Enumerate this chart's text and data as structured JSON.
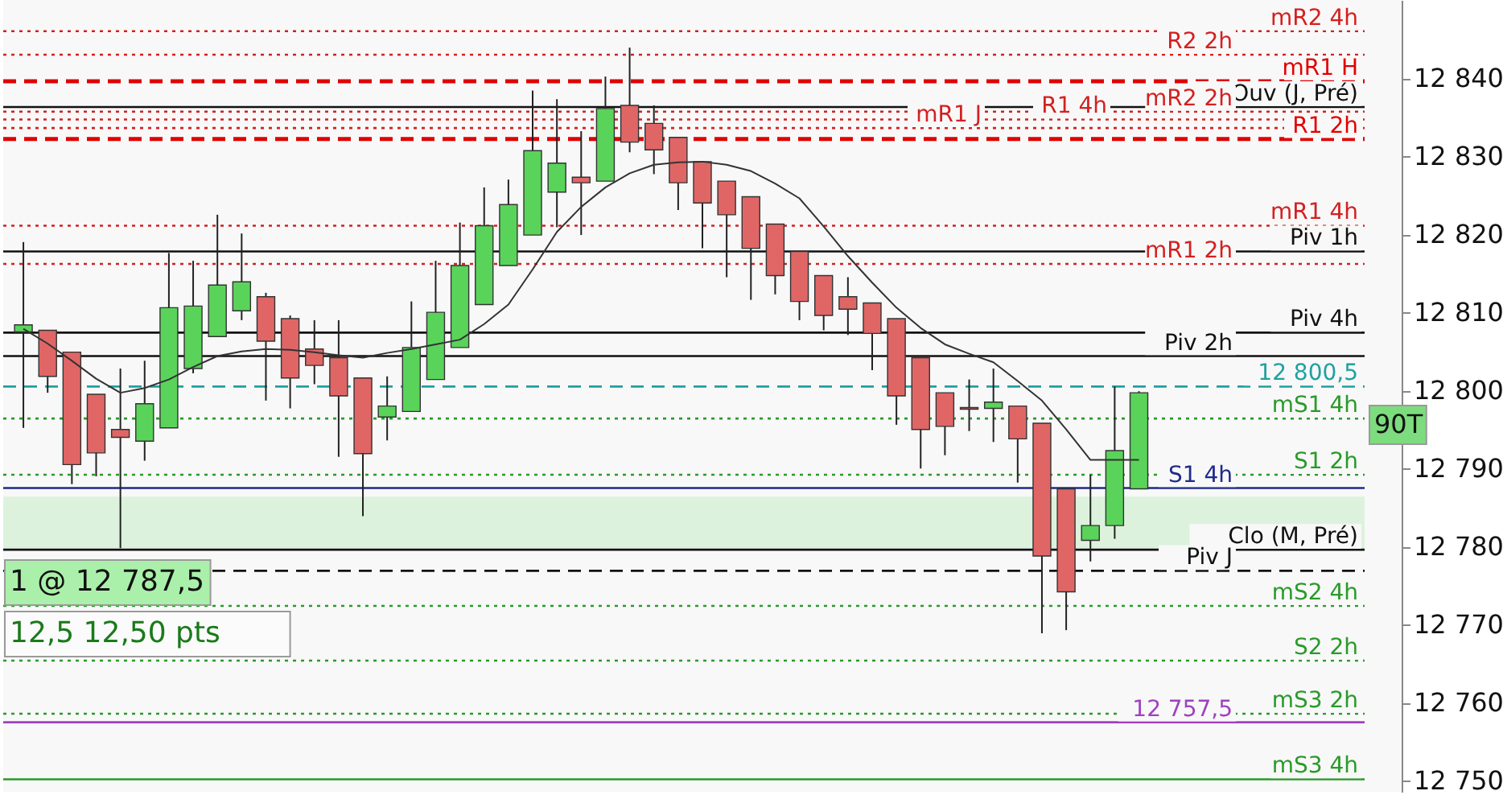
{
  "chart_data": {
    "type": "candlestick",
    "categories": [
      null,
      null,
      null,
      null,
      null,
      null,
      null,
      null,
      null,
      null,
      null,
      null,
      null,
      null,
      null,
      null,
      null,
      null,
      null,
      null,
      null,
      null,
      null,
      null,
      null,
      null,
      null,
      null,
      null,
      null,
      null,
      null,
      null,
      null,
      null,
      null,
      null,
      null,
      null,
      null,
      null,
      null,
      null,
      null,
      null,
      null,
      null
    ],
    "ohlc": [
      [
        12807.5,
        12819,
        12795.2,
        12808.4
      ],
      [
        12807.7,
        12807.7,
        12799.7,
        12801.8
      ],
      [
        12804.9,
        12804.9,
        12788,
        12790.5
      ],
      [
        12799.5,
        12799.5,
        12789,
        12792
      ],
      [
        12795,
        12802.8,
        12779.8,
        12794
      ],
      [
        12793.5,
        12803.8,
        12791,
        12798.3
      ],
      [
        12795.2,
        12817.6,
        12795.2,
        12810.6
      ],
      [
        12802.8,
        12816.6,
        12802.2,
        12810.8
      ],
      [
        12806.9,
        12822.5,
        12806.9,
        12813.5
      ],
      [
        12810.2,
        12820.1,
        12809,
        12813.9
      ],
      [
        12812,
        12812.5,
        12798.7,
        12806.3
      ],
      [
        12809.2,
        12809.6,
        12797.7,
        12801.6
      ],
      [
        12805.3,
        12809,
        12800.8,
        12803.2
      ],
      [
        12804.2,
        12809,
        12791.5,
        12799.3
      ],
      [
        12801.6,
        12801.6,
        12783.9,
        12791.9
      ],
      [
        12796.6,
        12801.8,
        12793.6,
        12798
      ],
      [
        12797.3,
        12811.4,
        12797.3,
        12805.5
      ],
      [
        12801.4,
        12816.6,
        12801.4,
        12810
      ],
      [
        12805.5,
        12821.5,
        12805.5,
        12816
      ],
      [
        12811,
        12826,
        12811,
        12821.1
      ],
      [
        12816,
        12827,
        12816,
        12823.8
      ],
      [
        12819.9,
        12838.4,
        12819.9,
        12830.7
      ],
      [
        12825.4,
        12837.3,
        12820.9,
        12829.1
      ],
      [
        12827.3,
        12833.2,
        12819.9,
        12826.6
      ],
      [
        12826.8,
        12840.2,
        12826.8,
        12836.1
      ],
      [
        12836.5,
        12843.9,
        12830.5,
        12831.8
      ],
      [
        12834.2,
        12836.5,
        12827.7,
        12830.8
      ],
      [
        12832.4,
        12832.4,
        12823.1,
        12826.6
      ],
      [
        12829.3,
        12829.3,
        12818.2,
        12824
      ],
      [
        12826.8,
        12826.8,
        12814.5,
        12822.5
      ],
      [
        12824.8,
        12824.8,
        12811.6,
        12818.2
      ],
      [
        12821.3,
        12821.3,
        12812.3,
        12814.7
      ],
      [
        12817.8,
        12817.8,
        12809,
        12811.4
      ],
      [
        12814.7,
        12814.7,
        12807.7,
        12809.6
      ],
      [
        12812,
        12814.5,
        12807.1,
        12810.4
      ],
      [
        12811.2,
        12811.2,
        12802.6,
        12807.3
      ],
      [
        12809.2,
        12809.2,
        12795.6,
        12799.3
      ],
      [
        12804.2,
        12804.2,
        12790,
        12795
      ],
      [
        12799.7,
        12799.7,
        12791.7,
        12795.4
      ],
      [
        12797.8,
        12801.4,
        12794.8,
        12797.6
      ],
      [
        12797.7,
        12802.8,
        12793.4,
        12798.5
      ],
      [
        12798,
        12798,
        12788.2,
        12793.8
      ],
      [
        12795.8,
        12795.8,
        12768.9,
        12778.8
      ],
      [
        12787.4,
        12787.4,
        12769.3,
        12774.2
      ],
      [
        12780.8,
        12789.2,
        12778.1,
        12782.7
      ],
      [
        12782.7,
        12800.5,
        12781,
        12792.3
      ],
      [
        12787.4,
        12799.9,
        12787.4,
        12799.7
      ]
    ],
    "colors": [
      "#5ad35a",
      "#e06666",
      "#e06666",
      "#e06666",
      "#e06666",
      "#5ad35a",
      "#5ad35a",
      "#5ad35a",
      "#5ad35a",
      "#5ad35a",
      "#e06666",
      "#e06666",
      "#e06666",
      "#e06666",
      "#e06666",
      "#5ad35a",
      "#5ad35a",
      "#5ad35a",
      "#5ad35a",
      "#5ad35a",
      "#5ad35a",
      "#5ad35a",
      "#5ad35a",
      "#e06666",
      "#5ad35a",
      "#e06666",
      "#e06666",
      "#e06666",
      "#e06666",
      "#e06666",
      "#e06666",
      "#e06666",
      "#e06666",
      "#e06666",
      "#e06666",
      "#e06666",
      "#e06666",
      "#e06666",
      "#e06666",
      "#e06666",
      "#5ad35a",
      "#e06666",
      "#e06666",
      "#e06666",
      "#5ad35a",
      "#5ad35a",
      "#5ad35a"
    ],
    "series": [
      {
        "type": "line",
        "color": "#333333",
        "values": [
          12807.9,
          12806,
          12803.8,
          12801.5,
          12799.7,
          12800.3,
          12801.4,
          12803,
          12804.4,
          12805,
          12805.3,
          12805.2,
          12804.9,
          12804.5,
          12804.2,
          12804.8,
          12805.3,
          12805.9,
          12806.5,
          12808.5,
          12811,
          12815.5,
          12820.3,
          12823.5,
          12826,
          12827.8,
          12828.9,
          12829.2,
          12829.3,
          12828.9,
          12828.1,
          12826.5,
          12824.6,
          12821,
          12817.2,
          12813.8,
          12810.6,
          12808,
          12805.9,
          12804.7,
          12803.6,
          12801.2,
          12798.7,
          12795,
          12791.1,
          12791.1,
          12791.1
        ]
      }
    ],
    "ylim": [
      12748.6,
      12850
    ],
    "yticks": [
      {
        "value": 12750,
        "label": "12 750"
      },
      {
        "value": 12760,
        "label": "12 760"
      },
      {
        "value": 12770,
        "label": "12 770"
      },
      {
        "value": 12780,
        "label": "12 780"
      },
      {
        "value": 12790,
        "label": "12 790"
      },
      {
        "value": 12800,
        "label": "12 800"
      },
      {
        "value": 12810,
        "label": "12 810"
      },
      {
        "value": 12820,
        "label": "12 820"
      },
      {
        "value": 12830,
        "label": "12 830"
      },
      {
        "value": 12840,
        "label": "12 840"
      }
    ],
    "tick_labels": "y",
    "grid": false,
    "bands": [
      {
        "axis": "y",
        "from": 12779.8,
        "to": 12786.4,
        "color": "#dcf2dc"
      }
    ],
    "ref_lines": [
      {
        "axis": "y",
        "value": 12846,
        "label": "mR2 4h",
        "color": "#d42020",
        "line_style": "dotted"
      },
      {
        "axis": "y",
        "value": 12843,
        "label": "R2 2h",
        "color": "#d42020",
        "line_style": "dotted"
      },
      {
        "axis": "y",
        "value": 12839.6,
        "label": "mR1 H",
        "color": "#e00000",
        "line_style": "dashed"
      },
      {
        "axis": "y",
        "value": 12836.3,
        "label": "Ouv (J, Pré)",
        "color": "#111111",
        "line_style": "solid"
      },
      {
        "axis": "y",
        "value": 12835.7,
        "label": "mR2 2h",
        "color": "#d42020",
        "line_style": "dotted"
      },
      {
        "axis": "y",
        "value": 12834.7,
        "label": "R1 4h",
        "color": "#d42020",
        "line_style": "dotted"
      },
      {
        "axis": "y",
        "value": 12833.6,
        "label": "mR1 J",
        "color": "#d42020",
        "line_style": "dotted"
      },
      {
        "axis": "y",
        "value": 12832.2,
        "label": "R1 2h",
        "color": "#e00000",
        "line_style": "dashed"
      },
      {
        "axis": "y",
        "value": 12821.1,
        "label": "mR1 4h",
        "color": "#d42020",
        "line_style": "dotted"
      },
      {
        "axis": "y",
        "value": 12817.8,
        "label": "Piv 1h",
        "color": "#111111",
        "line_style": "solid"
      },
      {
        "axis": "y",
        "value": 12816.2,
        "label": "mR1 2h",
        "color": "#d42020",
        "line_style": "dotted"
      },
      {
        "axis": "y",
        "value": 12807.4,
        "label": "Piv 4h",
        "color": "#111111",
        "line_style": "solid"
      },
      {
        "axis": "y",
        "value": 12804.4,
        "label": "Piv 2h",
        "color": "#111111",
        "line_style": "solid"
      },
      {
        "axis": "y",
        "value": 12800.5,
        "label": "12 800,5",
        "color": "#20a0a0",
        "line_style": "dashed"
      },
      {
        "axis": "y",
        "value": 12796.4,
        "label": "mS1 4h",
        "color": "#2a9a2a",
        "line_style": "dotted"
      },
      {
        "axis": "y",
        "value": 12789.2,
        "label": "S1 2h",
        "color": "#2a9a2a",
        "line_style": "dotted"
      },
      {
        "axis": "y",
        "value": 12787.5,
        "label": "S1 4h",
        "color": "#1f2a8a",
        "line_style": "solid"
      },
      {
        "axis": "y",
        "value": 12779.6,
        "label": "Clo (M, Pré)",
        "color": "#111111",
        "line_style": "solid"
      },
      {
        "axis": "y",
        "value": 12776.9,
        "label": "Piv J",
        "color": "#111111",
        "line_style": "dashed"
      },
      {
        "axis": "y",
        "value": 12772.4,
        "label": "mS2 4h",
        "color": "#2a9a2a",
        "line_style": "dotted"
      },
      {
        "axis": "y",
        "value": 12765.4,
        "label": "S2 2h",
        "color": "#2a9a2a",
        "line_style": "dotted"
      },
      {
        "axis": "y",
        "value": 12758.6,
        "label": "mS3 2h",
        "color": "#2a9a2a",
        "line_style": "dotted"
      },
      {
        "axis": "y",
        "value": 12757.5,
        "label": "12 757,5",
        "color": "#a040c0",
        "line_style": "solid"
      },
      {
        "axis": "y",
        "value": 12750.2,
        "label": "mS3 4h",
        "color": "#2a9a2a",
        "line_style": "solid"
      }
    ],
    "annotations": [
      "1 @ 12 787,5",
      "12,5    12,50 pts",
      "90T"
    ]
  }
}
